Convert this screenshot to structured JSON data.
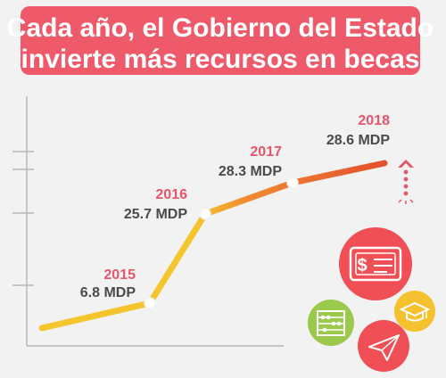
{
  "header": {
    "title_line1": "Cada año, el Gobierno del Estado",
    "title_line2": "invierte más recursos en becas"
  },
  "colors": {
    "banner": "#ef5a6a",
    "background": "#f2f2f2",
    "year_label": "#e8546a",
    "value_label": "#4a4a4a",
    "axis": "#b8b8b8",
    "icon_red": "#ef4f55",
    "icon_green": "#9bc94b",
    "icon_yellow": "#f6c12e"
  },
  "chart_data": {
    "type": "line",
    "title": "",
    "xlabel": "",
    "ylabel": "",
    "categories": [
      "2015",
      "2016",
      "2017",
      "2018"
    ],
    "values": [
      6.8,
      25.7,
      28.3,
      28.6
    ],
    "labels": [
      "6.8 MDP",
      "25.7 MDP",
      "28.3 MDP",
      "28.6 MDP"
    ],
    "unit": "MDP",
    "line_gradient": [
      "#f5c52e",
      "#f08a30",
      "#e4502e"
    ],
    "grid": false,
    "legend": "none",
    "trend_arrow": "up"
  },
  "icons": [
    "dollar-bill-icon",
    "abacus-icon",
    "graduation-cap-icon",
    "paper-plane-icon"
  ]
}
